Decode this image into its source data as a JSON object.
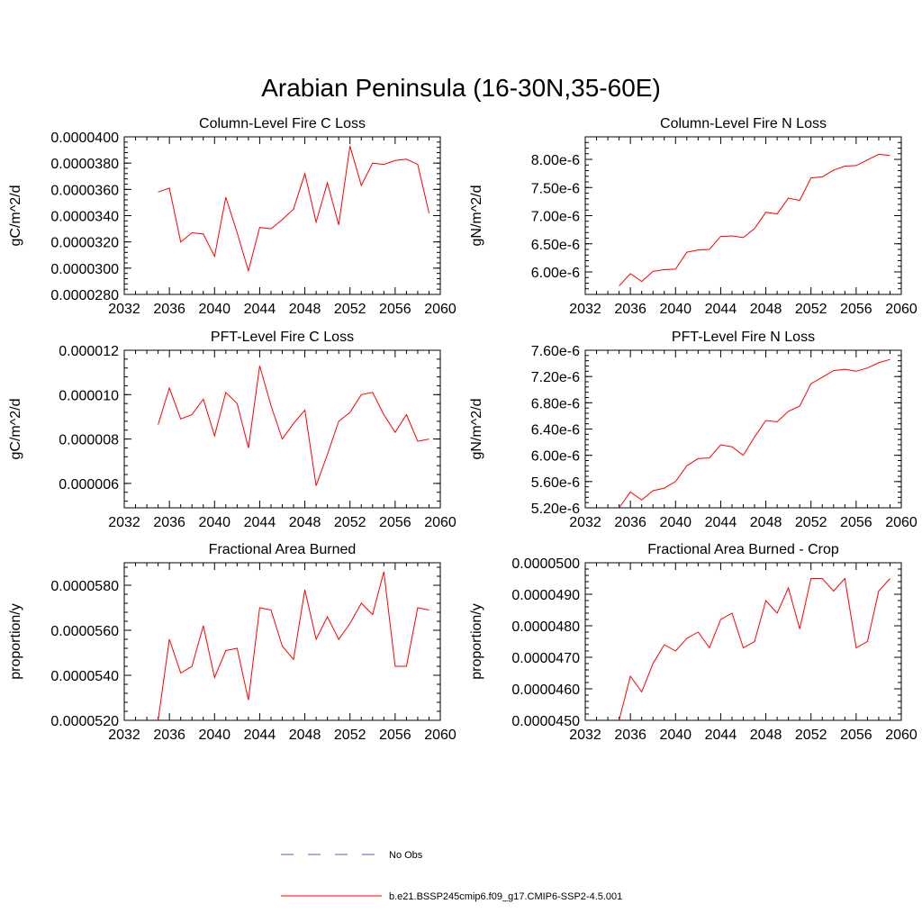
{
  "title": "Arabian Peninsula (16-30N,35-60E)",
  "legend": {
    "entries": [
      {
        "label": "No Obs",
        "color": "#5b5bb5",
        "style": "dashed"
      },
      {
        "label": "b.e21.BSSP245cmip6.f09_g17.CMIP6-SSP2-4.5.001",
        "color": "#ff0000",
        "style": "solid"
      }
    ]
  },
  "chart_data": [
    {
      "type": "line",
      "title": "Column-Level Fire C Loss",
      "ylabel": "gC/m^2/d",
      "xlim": [
        2032,
        2060
      ],
      "ylim": [
        2.8e-05,
        4e-05
      ],
      "xticks": [
        2032,
        2036,
        2040,
        2044,
        2048,
        2052,
        2056,
        2060
      ],
      "yticks": [
        2.8e-05,
        3e-05,
        3.2e-05,
        3.4e-05,
        3.6e-05,
        3.8e-05,
        4e-05
      ],
      "yticklabels": [
        "0.0000280",
        "0.0000300",
        "0.0000320",
        "0.0000340",
        "0.0000360",
        "0.0000380",
        "0.0000400"
      ],
      "x": [
        2035,
        2036,
        2037,
        2038,
        2039,
        2040,
        2041,
        2042,
        2043,
        2044,
        2045,
        2046,
        2047,
        2048,
        2049,
        2050,
        2051,
        2052,
        2053,
        2054,
        2055,
        2056,
        2057,
        2058,
        2059
      ],
      "series": [
        {
          "color": "#ff0000",
          "values": [
            3.58e-05,
            3.61e-05,
            3.2e-05,
            3.27e-05,
            3.26e-05,
            3.09e-05,
            3.54e-05,
            3.27e-05,
            2.98e-05,
            3.31e-05,
            3.3e-05,
            3.37e-05,
            3.45e-05,
            3.72e-05,
            3.35e-05,
            3.65e-05,
            3.33e-05,
            3.93e-05,
            3.63e-05,
            3.8e-05,
            3.79e-05,
            3.82e-05,
            3.83e-05,
            3.79e-05,
            3.42e-05
          ]
        }
      ]
    },
    {
      "type": "line",
      "title": "Column-Level Fire N Loss",
      "ylabel": "gN/m^2/d",
      "xlim": [
        2032,
        2060
      ],
      "ylim": [
        5.6e-06,
        8.4e-06
      ],
      "xticks": [
        2032,
        2036,
        2040,
        2044,
        2048,
        2052,
        2056,
        2060
      ],
      "yticks": [
        6e-06,
        6.5e-06,
        7e-06,
        7.5e-06,
        8e-06
      ],
      "yticklabels": [
        "6.00e-6",
        "6.50e-6",
        "7.00e-6",
        "7.50e-6",
        "8.00e-6"
      ],
      "x": [
        2035,
        2036,
        2037,
        2038,
        2039,
        2040,
        2041,
        2042,
        2043,
        2044,
        2045,
        2046,
        2047,
        2048,
        2049,
        2050,
        2051,
        2052,
        2053,
        2054,
        2055,
        2056,
        2057,
        2058,
        2059
      ],
      "series": [
        {
          "color": "#ff0000",
          "values": [
            5.75e-06,
            5.97e-06,
            5.83e-06,
            6.01e-06,
            6.04e-06,
            6.05e-06,
            6.35e-06,
            6.39e-06,
            6.4e-06,
            6.63e-06,
            6.64e-06,
            6.61e-06,
            6.77e-06,
            7.06e-06,
            7.03e-06,
            7.31e-06,
            7.27e-06,
            7.67e-06,
            7.69e-06,
            7.81e-06,
            7.88e-06,
            7.89e-06,
            7.99e-06,
            8.09e-06,
            8.07e-06
          ]
        }
      ]
    },
    {
      "type": "line",
      "title": "PFT-Level Fire C Loss",
      "ylabel": "gC/m^2/d",
      "xlim": [
        2032,
        2060
      ],
      "ylim": [
        4.9e-06,
        1.2e-05
      ],
      "xticks": [
        2032,
        2036,
        2040,
        2044,
        2048,
        2052,
        2056,
        2060
      ],
      "yticks": [
        6e-06,
        8e-06,
        1e-05,
        1.2e-05
      ],
      "yticklabels": [
        "0.000006",
        "0.000008",
        "0.000010",
        "0.000012"
      ],
      "x": [
        2035,
        2036,
        2037,
        2038,
        2039,
        2040,
        2041,
        2042,
        2043,
        2044,
        2045,
        2046,
        2047,
        2048,
        2049,
        2050,
        2051,
        2052,
        2053,
        2054,
        2055,
        2056,
        2057,
        2058,
        2059
      ],
      "series": [
        {
          "color": "#ff0000",
          "values": [
            8.65e-06,
            1.03e-05,
            8.9e-06,
            9.1e-06,
            9.8e-06,
            8.15e-06,
            1.01e-05,
            9.6e-06,
            7.6e-06,
            1.13e-05,
            9.5e-06,
            8e-06,
            8.7e-06,
            9.3e-06,
            5.9e-06,
            7.3e-06,
            8.8e-06,
            9.2e-06,
            1e-05,
            1.01e-05,
            9.1e-06,
            8.3e-06,
            9.1e-06,
            7.9e-06,
            8e-06
          ]
        }
      ]
    },
    {
      "type": "line",
      "title": "PFT-Level Fire N Loss",
      "ylabel": "gN/m^2/d",
      "xlim": [
        2032,
        2060
      ],
      "ylim": [
        5.2e-06,
        7.6e-06
      ],
      "xticks": [
        2032,
        2036,
        2040,
        2044,
        2048,
        2052,
        2056,
        2060
      ],
      "yticks": [
        5.2e-06,
        5.6e-06,
        6e-06,
        6.4e-06,
        6.8e-06,
        7.2e-06,
        7.6e-06
      ],
      "yticklabels": [
        "5.20e-6",
        "5.60e-6",
        "6.00e-6",
        "6.40e-6",
        "6.80e-6",
        "7.20e-6",
        "7.60e-6"
      ],
      "x": [
        2035,
        2036,
        2037,
        2038,
        2039,
        2040,
        2041,
        2042,
        2043,
        2044,
        2045,
        2046,
        2047,
        2048,
        2049,
        2050,
        2051,
        2052,
        2053,
        2054,
        2055,
        2056,
        2057,
        2058,
        2059
      ],
      "series": [
        {
          "color": "#ff0000",
          "values": [
            5.2e-06,
            5.44e-06,
            5.32e-06,
            5.46e-06,
            5.5e-06,
            5.6e-06,
            5.84e-06,
            5.95e-06,
            5.96e-06,
            6.16e-06,
            6.13e-06,
            6e-06,
            6.28e-06,
            6.53e-06,
            6.51e-06,
            6.67e-06,
            6.75e-06,
            7.09e-06,
            7.19e-06,
            7.29e-06,
            7.31e-06,
            7.28e-06,
            7.33e-06,
            7.41e-06,
            7.46e-06
          ]
        }
      ]
    },
    {
      "type": "line",
      "title": "Fractional Area Burned",
      "ylabel": "proportion/y",
      "xlim": [
        2032,
        2060
      ],
      "ylim": [
        5.2e-05,
        5.9e-05
      ],
      "xticks": [
        2032,
        2036,
        2040,
        2044,
        2048,
        2052,
        2056,
        2060
      ],
      "yticks": [
        5.2e-05,
        5.4e-05,
        5.6e-05,
        5.8e-05
      ],
      "yticklabels": [
        "0.0000520",
        "0.0000540",
        "0.0000560",
        "0.0000580"
      ],
      "x": [
        2035,
        2036,
        2037,
        2038,
        2039,
        2040,
        2041,
        2042,
        2043,
        2044,
        2045,
        2046,
        2047,
        2048,
        2049,
        2050,
        2051,
        2052,
        2053,
        2054,
        2055,
        2056,
        2057,
        2058,
        2059
      ],
      "series": [
        {
          "color": "#ff0000",
          "values": [
            5.2e-05,
            5.56e-05,
            5.41e-05,
            5.44e-05,
            5.62e-05,
            5.39e-05,
            5.51e-05,
            5.52e-05,
            5.29e-05,
            5.7e-05,
            5.69e-05,
            5.53e-05,
            5.47e-05,
            5.78e-05,
            5.56e-05,
            5.66e-05,
            5.56e-05,
            5.63e-05,
            5.72e-05,
            5.67e-05,
            5.86e-05,
            5.44e-05,
            5.44e-05,
            5.7e-05,
            5.69e-05
          ]
        }
      ]
    },
    {
      "type": "line",
      "title": "Fractional Area Burned - Crop",
      "ylabel": "proportion/y",
      "xlim": [
        2032,
        2060
      ],
      "ylim": [
        4.5e-05,
        5e-05
      ],
      "xticks": [
        2032,
        2036,
        2040,
        2044,
        2048,
        2052,
        2056,
        2060
      ],
      "yticks": [
        4.5e-05,
        4.6e-05,
        4.7e-05,
        4.8e-05,
        4.9e-05,
        5e-05
      ],
      "yticklabels": [
        "0.0000450",
        "0.0000460",
        "0.0000470",
        "0.0000480",
        "0.0000490",
        "0.0000500"
      ],
      "x": [
        2035,
        2036,
        2037,
        2038,
        2039,
        2040,
        2041,
        2042,
        2043,
        2044,
        2045,
        2046,
        2047,
        2048,
        2049,
        2050,
        2051,
        2052,
        2053,
        2054,
        2055,
        2056,
        2057,
        2058,
        2059
      ],
      "series": [
        {
          "color": "#ff0000",
          "values": [
            4.5e-05,
            4.64e-05,
            4.59e-05,
            4.68e-05,
            4.74e-05,
            4.72e-05,
            4.76e-05,
            4.78e-05,
            4.73e-05,
            4.82e-05,
            4.84e-05,
            4.73e-05,
            4.75e-05,
            4.88e-05,
            4.84e-05,
            4.92e-05,
            4.79e-05,
            4.95e-05,
            4.95e-05,
            4.91e-05,
            4.95e-05,
            4.73e-05,
            4.75e-05,
            4.91e-05,
            4.95e-05
          ]
        }
      ]
    }
  ]
}
